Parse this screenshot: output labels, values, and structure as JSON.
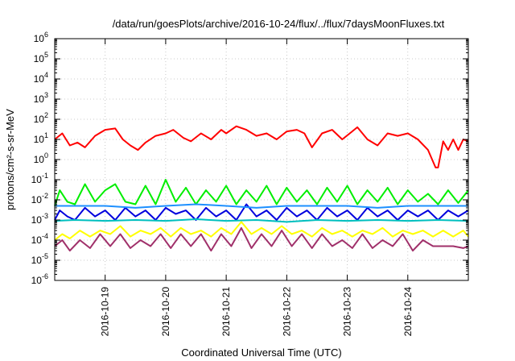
{
  "chart_data": {
    "type": "line",
    "title": "/data/run/goesPlots/archive/2016-10-24/flux/../flux/7daysMoonFluxes.txt",
    "xlabel": "Coordinated Universal Time (UTC)",
    "ylabel": "protons/cm²-s-sr-MeV",
    "yscale": "log",
    "xtype": "date",
    "xlim": [
      "2016-10-18T04:00",
      "2016-10-25T00:00"
    ],
    "ylim": [
      1e-06,
      1000000.0
    ],
    "grid": true,
    "legend": "none",
    "x_tick_labels": [
      "2016-10-19",
      "2016-10-20",
      "2016-10-21",
      "2016-10-22",
      "2016-10-23",
      "2016-10-24"
    ],
    "y_tick_labels": [
      {
        "base": "10",
        "exp": "-6"
      },
      {
        "base": "10",
        "exp": "-5"
      },
      {
        "base": "10",
        "exp": "-4"
      },
      {
        "base": "10",
        "exp": "-3"
      },
      {
        "base": "10",
        "exp": "-2"
      },
      {
        "base": "10",
        "exp": "-1"
      },
      {
        "base": "10",
        "exp": "0"
      },
      {
        "base": "10",
        "exp": "1"
      },
      {
        "base": "10",
        "exp": "2"
      },
      {
        "base": "10",
        "exp": "3"
      },
      {
        "base": "10",
        "exp": "4"
      },
      {
        "base": "10",
        "exp": "5"
      },
      {
        "base": "10",
        "exp": "6"
      }
    ],
    "series": [
      {
        "color": "#ff0000",
        "x": [
          "2016-10-18T04:00",
          "2016-10-18T07:00",
          "2016-10-18T10:00",
          "2016-10-18T13:00",
          "2016-10-18T16:00",
          "2016-10-18T20:00",
          "2016-10-19T00:00",
          "2016-10-19T04:00",
          "2016-10-19T07:00",
          "2016-10-19T10:00",
          "2016-10-19T13:00",
          "2016-10-19T16:00",
          "2016-10-19T20:00",
          "2016-10-20T00:00",
          "2016-10-20T03:00",
          "2016-10-20T07:00",
          "2016-10-20T10:00",
          "2016-10-20T14:00",
          "2016-10-20T18:00",
          "2016-10-20T22:00",
          "2016-10-21T00:00",
          "2016-10-21T04:00",
          "2016-10-21T08:00",
          "2016-10-21T12:00",
          "2016-10-21T16:00",
          "2016-10-21T20:00",
          "2016-10-22T00:00",
          "2016-10-22T04:00",
          "2016-10-22T07:00",
          "2016-10-22T10:00",
          "2016-10-22T14:00",
          "2016-10-22T18:00",
          "2016-10-22T22:00",
          "2016-10-23T01:00",
          "2016-10-23T04:00",
          "2016-10-23T08:00",
          "2016-10-23T12:00",
          "2016-10-23T16:00",
          "2016-10-23T20:00",
          "2016-10-24T00:00",
          "2016-10-24T04:00",
          "2016-10-24T08:00",
          "2016-10-24T11:00",
          "2016-10-24T12:00",
          "2016-10-24T14:00",
          "2016-10-24T16:00",
          "2016-10-24T18:00",
          "2016-10-24T20:00",
          "2016-10-24T22:00",
          "2016-10-25T00:00"
        ],
        "y": [
          10,
          20,
          5,
          7,
          4,
          15,
          30,
          35,
          10,
          5,
          3,
          7,
          15,
          20,
          30,
          12,
          8,
          20,
          10,
          30,
          20,
          45,
          30,
          15,
          20,
          10,
          25,
          30,
          20,
          4,
          20,
          30,
          10,
          20,
          40,
          10,
          5,
          20,
          15,
          20,
          10,
          3,
          0.4,
          0.4,
          8,
          3,
          10,
          3,
          10,
          8
        ]
      },
      {
        "color": "#00ee00",
        "x": [
          "2016-10-18T04:00",
          "2016-10-18T06:00",
          "2016-10-18T09:00",
          "2016-10-18T12:00",
          "2016-10-18T16:00",
          "2016-10-18T20:00",
          "2016-10-19T00:00",
          "2016-10-19T04:00",
          "2016-10-19T08:00",
          "2016-10-19T12:00",
          "2016-10-19T16:00",
          "2016-10-19T20:00",
          "2016-10-20T00:00",
          "2016-10-20T04:00",
          "2016-10-20T08:00",
          "2016-10-20T12:00",
          "2016-10-20T16:00",
          "2016-10-20T20:00",
          "2016-10-21T00:00",
          "2016-10-21T04:00",
          "2016-10-21T08:00",
          "2016-10-21T12:00",
          "2016-10-21T16:00",
          "2016-10-21T20:00",
          "2016-10-22T00:00",
          "2016-10-22T04:00",
          "2016-10-22T08:00",
          "2016-10-22T12:00",
          "2016-10-22T16:00",
          "2016-10-22T20:00",
          "2016-10-23T00:00",
          "2016-10-23T04:00",
          "2016-10-23T08:00",
          "2016-10-23T12:00",
          "2016-10-23T16:00",
          "2016-10-23T20:00",
          "2016-10-24T00:00",
          "2016-10-24T04:00",
          "2016-10-24T08:00",
          "2016-10-24T12:00",
          "2016-10-24T16:00",
          "2016-10-24T20:00",
          "2016-10-25T00:00"
        ],
        "y": [
          0.005,
          0.03,
          0.008,
          0.006,
          0.06,
          0.008,
          0.03,
          0.06,
          0.008,
          0.006,
          0.05,
          0.006,
          0.1,
          0.008,
          0.04,
          0.006,
          0.03,
          0.008,
          0.05,
          0.006,
          0.03,
          0.008,
          0.05,
          0.006,
          0.04,
          0.008,
          0.03,
          0.006,
          0.04,
          0.008,
          0.05,
          0.006,
          0.03,
          0.008,
          0.04,
          0.006,
          0.03,
          0.008,
          0.02,
          0.006,
          0.03,
          0.007,
          0.03
        ]
      },
      {
        "color": "#0000dd",
        "x": [
          "2016-10-18T04:00",
          "2016-10-18T06:00",
          "2016-10-18T09:00",
          "2016-10-18T12:00",
          "2016-10-18T16:00",
          "2016-10-18T20:00",
          "2016-10-19T00:00",
          "2016-10-19T04:00",
          "2016-10-19T08:00",
          "2016-10-19T12:00",
          "2016-10-19T16:00",
          "2016-10-19T20:00",
          "2016-10-20T00:00",
          "2016-10-20T04:00",
          "2016-10-20T08:00",
          "2016-10-20T12:00",
          "2016-10-20T16:00",
          "2016-10-20T20:00",
          "2016-10-21T00:00",
          "2016-10-21T04:00",
          "2016-10-21T08:00",
          "2016-10-21T12:00",
          "2016-10-21T16:00",
          "2016-10-21T20:00",
          "2016-10-22T00:00",
          "2016-10-22T04:00",
          "2016-10-22T08:00",
          "2016-10-22T12:00",
          "2016-10-22T16:00",
          "2016-10-22T20:00",
          "2016-10-23T00:00",
          "2016-10-23T04:00",
          "2016-10-23T08:00",
          "2016-10-23T12:00",
          "2016-10-23T16:00",
          "2016-10-23T20:00",
          "2016-10-24T00:00",
          "2016-10-24T04:00",
          "2016-10-24T08:00",
          "2016-10-24T12:00",
          "2016-10-24T16:00",
          "2016-10-24T20:00",
          "2016-10-25T00:00"
        ],
        "y": [
          0.001,
          0.003,
          0.0015,
          0.001,
          0.004,
          0.0015,
          0.003,
          0.001,
          0.004,
          0.0015,
          0.003,
          0.001,
          0.004,
          0.002,
          0.003,
          0.001,
          0.004,
          0.0015,
          0.003,
          0.001,
          0.006,
          0.0015,
          0.003,
          0.001,
          0.004,
          0.0015,
          0.003,
          0.001,
          0.004,
          0.0015,
          0.003,
          0.001,
          0.004,
          0.0015,
          0.003,
          0.001,
          0.003,
          0.0015,
          0.003,
          0.001,
          0.003,
          0.0015,
          0.003
        ]
      },
      {
        "color": "#00bfbf",
        "x": [
          "2016-10-18T04:00",
          "2016-10-18T12:00",
          "2016-10-19T00:00",
          "2016-10-19T12:00",
          "2016-10-20T00:00",
          "2016-10-20T12:00",
          "2016-10-21T00:00",
          "2016-10-21T12:00",
          "2016-10-22T00:00",
          "2016-10-22T12:00",
          "2016-10-23T00:00",
          "2016-10-23T12:00",
          "2016-10-24T00:00",
          "2016-10-24T12:00",
          "2016-10-25T00:00"
        ],
        "y": [
          0.0009,
          0.001,
          0.0009,
          0.001,
          0.0009,
          0.0011,
          0.0009,
          0.001,
          0.0008,
          0.001,
          0.0009,
          0.001,
          0.0009,
          0.001,
          0.0009
        ]
      },
      {
        "color": "#1e90ff",
        "x": [
          "2016-10-18T04:00",
          "2016-10-18T12:00",
          "2016-10-19T00:00",
          "2016-10-19T12:00",
          "2016-10-20T00:00",
          "2016-10-20T12:00",
          "2016-10-21T00:00",
          "2016-10-21T12:00",
          "2016-10-22T00:00",
          "2016-10-22T12:00",
          "2016-10-23T00:00",
          "2016-10-23T12:00",
          "2016-10-24T00:00",
          "2016-10-24T12:00",
          "2016-10-25T00:00"
        ],
        "y": [
          0.005,
          0.005,
          0.005,
          0.004,
          0.005,
          0.006,
          0.005,
          0.004,
          0.005,
          0.005,
          0.005,
          0.004,
          0.005,
          0.005,
          0.005
        ]
      },
      {
        "color": "#ffff00",
        "x": [
          "2016-10-18T04:00",
          "2016-10-18T07:00",
          "2016-10-18T10:00",
          "2016-10-18T14:00",
          "2016-10-18T18:00",
          "2016-10-18T22:00",
          "2016-10-19T02:00",
          "2016-10-19T06:00",
          "2016-10-19T10:00",
          "2016-10-19T14:00",
          "2016-10-19T18:00",
          "2016-10-19T22:00",
          "2016-10-20T02:00",
          "2016-10-20T06:00",
          "2016-10-20T10:00",
          "2016-10-20T14:00",
          "2016-10-20T18:00",
          "2016-10-20T22:00",
          "2016-10-21T02:00",
          "2016-10-21T06:00",
          "2016-10-21T10:00",
          "2016-10-21T14:00",
          "2016-10-21T18:00",
          "2016-10-21T22:00",
          "2016-10-22T02:00",
          "2016-10-22T06:00",
          "2016-10-22T10:00",
          "2016-10-22T14:00",
          "2016-10-22T18:00",
          "2016-10-22T22:00",
          "2016-10-23T02:00",
          "2016-10-23T06:00",
          "2016-10-23T10:00",
          "2016-10-23T14:00",
          "2016-10-23T18:00",
          "2016-10-23T22:00",
          "2016-10-24T02:00",
          "2016-10-24T06:00",
          "2016-10-24T10:00",
          "2016-10-24T14:00",
          "2016-10-24T18:00",
          "2016-10-24T22:00",
          "2016-10-25T00:00"
        ],
        "y": [
          0.0001,
          0.0002,
          0.00012,
          0.0003,
          0.00015,
          0.0003,
          0.0002,
          0.0005,
          0.00015,
          0.0003,
          0.0002,
          0.0004,
          0.00015,
          0.0004,
          0.0002,
          0.0003,
          0.00015,
          0.0004,
          0.0002,
          0.0008,
          0.0002,
          0.0004,
          0.0002,
          0.0005,
          0.0002,
          0.0003,
          0.00015,
          0.0004,
          0.0002,
          0.0003,
          0.00015,
          0.0003,
          0.0002,
          0.0004,
          0.00015,
          0.0003,
          0.0002,
          0.0003,
          0.00015,
          0.0003,
          0.00015,
          0.0003,
          0.00015
        ]
      },
      {
        "color": "#a0306a",
        "x": [
          "2016-10-18T04:00",
          "2016-10-18T07:00",
          "2016-10-18T10:00",
          "2016-10-18T14:00",
          "2016-10-18T18:00",
          "2016-10-18T22:00",
          "2016-10-19T02:00",
          "2016-10-19T06:00",
          "2016-10-19T10:00",
          "2016-10-19T14:00",
          "2016-10-19T18:00",
          "2016-10-19T22:00",
          "2016-10-20T02:00",
          "2016-10-20T06:00",
          "2016-10-20T10:00",
          "2016-10-20T14:00",
          "2016-10-20T18:00",
          "2016-10-20T22:00",
          "2016-10-21T02:00",
          "2016-10-21T06:00",
          "2016-10-21T10:00",
          "2016-10-21T14:00",
          "2016-10-21T18:00",
          "2016-10-21T22:00",
          "2016-10-22T02:00",
          "2016-10-22T06:00",
          "2016-10-22T10:00",
          "2016-10-22T14:00",
          "2016-10-22T18:00",
          "2016-10-22T22:00",
          "2016-10-23T02:00",
          "2016-10-23T06:00",
          "2016-10-23T10:00",
          "2016-10-23T14:00",
          "2016-10-23T18:00",
          "2016-10-23T22:00",
          "2016-10-24T02:00",
          "2016-10-24T06:00",
          "2016-10-24T10:00",
          "2016-10-24T14:00",
          "2016-10-24T18:00",
          "2016-10-24T22:00",
          "2016-10-25T00:00"
        ],
        "y": [
          5e-05,
          0.0001,
          3e-05,
          0.0001,
          4e-05,
          0.0002,
          5e-05,
          0.0002,
          4e-05,
          0.0001,
          5e-05,
          0.0002,
          4e-05,
          0.0002,
          5e-05,
          0.0002,
          3e-05,
          0.0002,
          5e-05,
          0.0004,
          4e-05,
          0.0002,
          5e-05,
          0.0003,
          5e-05,
          0.0002,
          4e-05,
          0.0002,
          5e-05,
          0.0001,
          4e-05,
          0.0002,
          4e-05,
          0.0001,
          5e-05,
          0.0002,
          3e-05,
          0.0001,
          5e-05,
          5e-05,
          5e-05,
          4e-05,
          5e-05
        ]
      }
    ]
  }
}
